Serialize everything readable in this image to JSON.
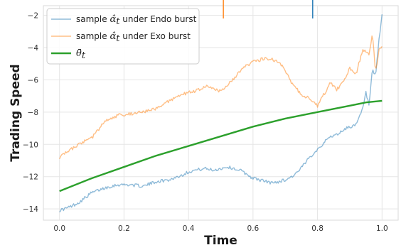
{
  "chart_data": {
    "type": "line",
    "xlabel": "Time",
    "ylabel": "Trading Speed",
    "xlim": [
      -0.05,
      1.05
    ],
    "ylim": [
      -14.7,
      -1.4
    ],
    "xticks": [
      0.0,
      0.2,
      0.4,
      0.6,
      0.8,
      1.0
    ],
    "xtick_labels": [
      "0.0",
      "0.2",
      "0.4",
      "0.6",
      "0.8",
      "1.0"
    ],
    "yticks": [
      -14,
      -12,
      -10,
      -8,
      -6,
      -4,
      -2
    ],
    "ytick_labels": [
      "−14",
      "−12",
      "−10",
      "−8",
      "−6",
      "−4",
      "−2"
    ],
    "grid": true,
    "legend_position": "top-left",
    "series": [
      {
        "name": "sample α̂t under Endo burst",
        "legend_prefix": "sample ",
        "legend_symbol": "α̂",
        "legend_sub": "t",
        "legend_suffix": " under Endo burst",
        "color": "#1f77b4",
        "opacity": 0.5,
        "noise": 0.1,
        "x": [
          0.0,
          0.03,
          0.06,
          0.1,
          0.14,
          0.18,
          0.22,
          0.26,
          0.3,
          0.34,
          0.38,
          0.4,
          0.42,
          0.45,
          0.48,
          0.52,
          0.56,
          0.6,
          0.62,
          0.66,
          0.7,
          0.72,
          0.74,
          0.76,
          0.78,
          0.8,
          0.82,
          0.84,
          0.86,
          0.88,
          0.9,
          0.92,
          0.94,
          0.95,
          0.96,
          0.97,
          0.98,
          0.99,
          1.0
        ],
        "y": [
          -14.1,
          -13.9,
          -13.6,
          -13.0,
          -12.7,
          -12.5,
          -12.5,
          -12.6,
          -12.3,
          -12.2,
          -11.9,
          -11.7,
          -11.6,
          -11.5,
          -11.6,
          -11.4,
          -11.6,
          -12.1,
          -12.2,
          -12.4,
          -12.2,
          -12.0,
          -11.7,
          -11.2,
          -10.7,
          -10.3,
          -9.9,
          -9.5,
          -9.4,
          -9.1,
          -8.9,
          -8.8,
          -7.8,
          -6.8,
          -7.6,
          -5.4,
          -5.8,
          -3.6,
          -2.0
        ],
        "event_marker": {
          "x": 0.785,
          "y_top": -1.55,
          "y_bottom": -1.65
        }
      },
      {
        "name": "sample α̂t under Exo burst",
        "legend_prefix": "sample ",
        "legend_symbol": "α̂",
        "legend_sub": "t",
        "legend_suffix": " under Exo burst",
        "color": "#ff7f0e",
        "opacity": 0.5,
        "noise": 0.1,
        "x": [
          0.0,
          0.03,
          0.06,
          0.1,
          0.14,
          0.18,
          0.22,
          0.26,
          0.3,
          0.34,
          0.38,
          0.42,
          0.46,
          0.5,
          0.52,
          0.55,
          0.58,
          0.6,
          0.63,
          0.66,
          0.69,
          0.72,
          0.75,
          0.78,
          0.8,
          0.82,
          0.84,
          0.86,
          0.88,
          0.9,
          0.92,
          0.94,
          0.96,
          0.97,
          0.98,
          0.99,
          1.0
        ],
        "y": [
          -10.8,
          -10.4,
          -10.0,
          -9.6,
          -8.6,
          -8.2,
          -8.1,
          -8.0,
          -7.8,
          -7.3,
          -6.9,
          -6.7,
          -6.4,
          -6.7,
          -6.3,
          -5.7,
          -5.1,
          -4.9,
          -4.7,
          -4.7,
          -5.1,
          -6.2,
          -6.9,
          -7.2,
          -7.6,
          -6.9,
          -6.2,
          -6.6,
          -6.1,
          -5.3,
          -5.6,
          -4.1,
          -4.4,
          -3.2,
          -5.5,
          -4.2,
          -3.9
        ],
        "event_marker": {
          "x": 0.508,
          "y_top": -1.55,
          "y_bottom": -1.65
        }
      },
      {
        "name": "θ̄t",
        "legend_prefix": "",
        "legend_symbol": "θ̄",
        "legend_sub": "t",
        "legend_suffix": "",
        "color": "#2ca02c",
        "opacity": 1.0,
        "noise": 0.0,
        "x": [
          0.0,
          0.1,
          0.2,
          0.3,
          0.4,
          0.5,
          0.6,
          0.7,
          0.8,
          0.85,
          0.9,
          0.95,
          1.0
        ],
        "y": [
          -12.9,
          -12.1,
          -11.4,
          -10.7,
          -10.1,
          -9.5,
          -8.9,
          -8.4,
          -8.0,
          -7.8,
          -7.6,
          -7.4,
          -7.3
        ]
      }
    ]
  }
}
